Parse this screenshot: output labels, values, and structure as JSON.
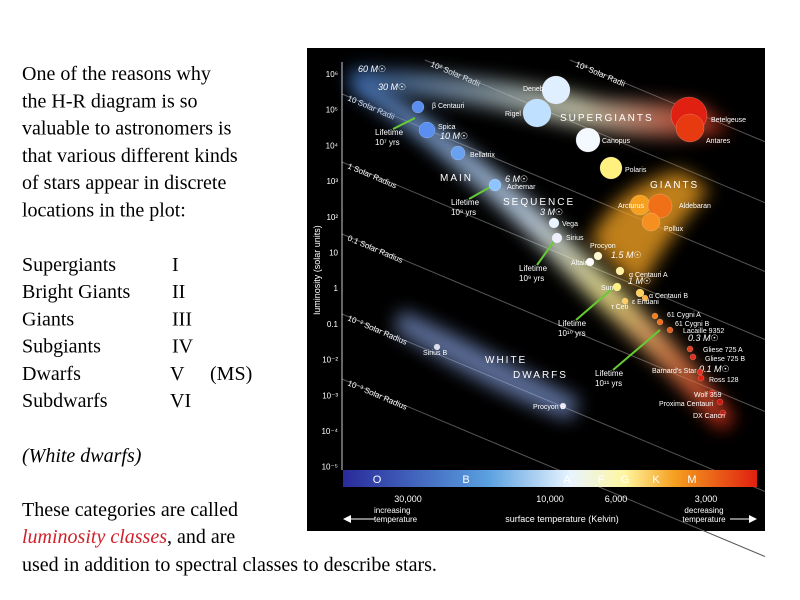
{
  "text": {
    "intro_lines": [
      "One of the reasons why",
      "the H-R diagram is so",
      "valuable to astronomers is",
      "that various different kinds",
      "of stars appear in discrete",
      "locations in the plot:"
    ],
    "classes": [
      {
        "name": "Supergiants",
        "numeral": "I"
      },
      {
        "name": "Bright Giants",
        "numeral": "II"
      },
      {
        "name": "Giants",
        "numeral": "III"
      },
      {
        "name": "Subgiants",
        "numeral": "IV"
      },
      {
        "name": "Dwarfs",
        "numeral": "V",
        "note": "(MS)"
      },
      {
        "name": "Subdwarfs",
        "numeral": "VI"
      }
    ],
    "white_dwarfs": "(White dwarfs)",
    "closing": {
      "line1": "These categories are called",
      "emphasis": "luminosity classes",
      "line2_rest": ", and are",
      "line3": "used in addition to spectral classes to describe stars."
    }
  },
  "figure": {
    "y_label": "luminosity (solar units)",
    "y_ticks": [
      "10⁶",
      "10⁵",
      "10⁴",
      "10³",
      "10²",
      "10",
      "1",
      "0.1",
      "10⁻²",
      "10⁻³",
      "10⁻⁴",
      "10⁻⁵"
    ],
    "spectral_classes": [
      "O",
      "B",
      "A",
      "F",
      "G",
      "K",
      "M"
    ],
    "temperatures": [
      "30,000",
      "10,000",
      "6,000",
      "3,000"
    ],
    "x_label": "surface temperature (Kelvin)",
    "left_arrow": [
      "increasing",
      "temperature"
    ],
    "right_arrow": [
      "decreasing",
      "temperature"
    ],
    "regions": [
      "SUPERGIANTS",
      "GIANTS",
      "MAIN",
      "SEQUENCE",
      "WHITE",
      "DWARFS"
    ],
    "radius_lines": [
      "10³ Solar Radii",
      "10² Solar Radii",
      "10 Solar Radii",
      "1 Solar Radius",
      "0.1 Solar Radius",
      "10⁻² Solar Radius",
      "10⁻³ Solar Radius"
    ],
    "masses": [
      "60 M☉",
      "30 M☉",
      "10 M☉",
      "6 M☉",
      "3 M☉",
      "1.5 M☉",
      "1 M☉",
      "0.3 M☉",
      "0.1 M☉"
    ],
    "lifetimes": [
      [
        "Lifetime",
        "10⁷ yrs"
      ],
      [
        "Lifetime",
        "10⁸ yrs"
      ],
      [
        "Lifetime",
        "10⁹ yrs"
      ],
      [
        "Lifetime",
        "10¹⁰ yrs"
      ],
      [
        "Lifetime",
        "10¹¹ yrs"
      ]
    ],
    "stars": [
      "Deneb",
      "Rigel",
      "β Centauri",
      "Spica",
      "Bellatrix",
      "Achernar",
      "Vega",
      "Sirius",
      "Procyon",
      "Altair",
      "Canopus",
      "Polaris",
      "Betelgeuse",
      "Antares",
      "Arcturus",
      "Aldebaran",
      "Pollux",
      "α Centauri A",
      "α Centauri B",
      "Sun",
      "τ Ceti",
      "ε Eridani",
      "61 Cygni A",
      "61 Cygni B",
      "Lacaille 9352",
      "Gliese 725 A",
      "Gliese 725 B",
      "Barnard's Star",
      "Ross 128",
      "Wolf 359",
      "Proxima Centauri",
      "DX Cancri",
      "Sirius B",
      "Procyon B"
    ]
  }
}
